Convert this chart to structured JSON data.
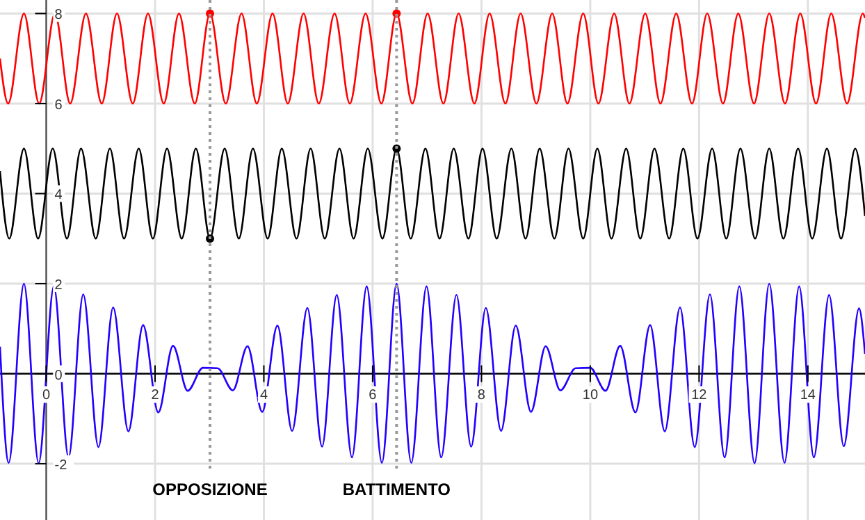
{
  "chart_data": {
    "type": "line",
    "xlim": [
      -0.85,
      15.05
    ],
    "ylim": [
      -3.25,
      8.3
    ],
    "xticks": [
      0,
      2,
      4,
      6,
      8,
      10,
      12,
      14
    ],
    "yticks": [
      -2,
      0,
      2,
      4,
      6,
      8
    ],
    "grid": true,
    "line_style": "solid",
    "ref_lines": [
      {
        "axis": "x",
        "value": 3.01,
        "label": "OPPOSIZIONE",
        "color": "#999999",
        "line_style": "dotted"
      },
      {
        "axis": "x",
        "value": 6.44,
        "label": "BATTIMENTO",
        "color": "#999999",
        "line_style": "dotted"
      }
    ],
    "series": [
      {
        "color": "#ff0000",
        "x": [
          -0.85,
          -0.7,
          -0.41,
          -0.13,
          0.16,
          0.44,
          0.73,
          1.02,
          1.3,
          1.59,
          1.87,
          2.16,
          2.44,
          2.73,
          3.01,
          3.3,
          3.59,
          3.87,
          4.16,
          4.44,
          4.73,
          5.01,
          5.3,
          5.58,
          5.87,
          6.16,
          6.44,
          6.73,
          7.01,
          7.3,
          7.58,
          7.87,
          8.15,
          8.44,
          8.72,
          9.01,
          9.3,
          9.58,
          9.87,
          10.15,
          10.44,
          10.72,
          11.01,
          11.29,
          11.58,
          11.87,
          12.15,
          12.44,
          12.72,
          13.01,
          13.29,
          13.58,
          13.86,
          14.15,
          14.43,
          14.72,
          15.01,
          15.05
        ],
        "values": [
          7.0,
          6,
          8,
          6,
          8,
          6,
          8,
          6,
          8,
          6,
          8,
          6,
          8,
          6,
          8,
          6,
          8,
          6,
          8,
          6,
          8,
          6,
          8,
          6,
          8,
          6,
          8,
          6,
          8,
          6,
          8,
          6,
          8,
          6,
          8,
          6,
          8,
          6,
          8,
          6,
          8,
          6,
          8,
          6,
          8,
          6,
          8,
          6,
          8,
          6,
          8,
          6,
          8,
          6,
          8,
          6,
          8,
          7.9
        ]
      },
      {
        "color": "#000000",
        "x": [
          -0.85,
          -0.68,
          -0.41,
          -0.15,
          0.12,
          0.38,
          0.64,
          0.91,
          1.17,
          1.43,
          1.7,
          1.96,
          2.22,
          2.49,
          2.75,
          3.01,
          3.28,
          3.54,
          3.8,
          4.07,
          4.33,
          4.6,
          4.86,
          5.12,
          5.39,
          5.65,
          5.91,
          6.18,
          6.44,
          6.7,
          6.97,
          7.23,
          7.49,
          7.76,
          8.02,
          8.28,
          8.55,
          8.81,
          9.07,
          9.34,
          9.6,
          9.87,
          10.13,
          10.39,
          10.66,
          10.92,
          11.18,
          11.45,
          11.71,
          11.97,
          12.24,
          12.5,
          12.76,
          13.03,
          13.29,
          13.55,
          13.82,
          14.08,
          14.35,
          14.61,
          14.87,
          15.05
        ],
        "values": [
          4.5,
          3,
          5,
          3,
          5,
          3,
          5,
          3,
          5,
          3,
          5,
          3,
          5,
          3,
          5,
          3,
          5,
          3,
          5,
          3,
          5,
          3,
          5,
          3,
          5,
          3,
          5,
          3,
          5,
          3,
          5,
          3,
          5,
          3,
          5,
          3,
          5,
          3,
          5,
          3,
          5,
          3,
          5,
          3,
          5,
          3,
          5,
          3,
          5,
          3,
          5,
          3,
          5,
          3,
          5,
          3,
          5,
          3,
          5,
          3,
          5,
          3.5
        ]
      },
      {
        "color": "#2200ff",
        "x": [
          -0.85,
          -0.69,
          -0.41,
          -0.14,
          0.14,
          0.41,
          0.68,
          0.96,
          1.23,
          1.51,
          1.78,
          2.06,
          2.33,
          2.6,
          2.88,
          3.15,
          3.43,
          3.7,
          3.97,
          4.25,
          4.52,
          4.8,
          5.07,
          5.34,
          5.62,
          5.89,
          6.17,
          6.44,
          6.71,
          6.99,
          7.26,
          7.54,
          7.81,
          8.08,
          8.36,
          8.63,
          8.91,
          9.18,
          9.45,
          9.73,
          10.0,
          10.28,
          10.55,
          10.83,
          11.1,
          11.37,
          11.65,
          11.92,
          12.2,
          12.47,
          12.74,
          13.02,
          13.29,
          13.57,
          13.84,
          14.11,
          14.39,
          14.66,
          14.94,
          15.05
        ],
        "values": [
          0.6,
          -1.98,
          2.0,
          -1.99,
          1.94,
          -1.86,
          1.76,
          -1.63,
          1.47,
          -1.28,
          1.08,
          -0.86,
          0.62,
          -0.38,
          0.13,
          0.12,
          -0.37,
          0.61,
          -0.85,
          1.07,
          -1.27,
          1.46,
          -1.62,
          1.75,
          -1.86,
          1.94,
          -1.98,
          2.0,
          -1.98,
          1.94,
          -1.86,
          1.75,
          -1.62,
          1.46,
          -1.27,
          1.07,
          -0.85,
          0.61,
          -0.37,
          0.12,
          0.13,
          -0.38,
          0.62,
          -0.86,
          1.08,
          -1.28,
          1.47,
          -1.63,
          1.76,
          -1.86,
          1.94,
          -1.99,
          2.0,
          -1.98,
          1.94,
          -1.86,
          1.75,
          -1.61,
          1.45,
          0.44
        ]
      },
      {
        "type": "scatter",
        "marker": "circle",
        "color": "#ff0000",
        "x": [
          3.01,
          6.44
        ],
        "values": [
          8,
          8
        ]
      },
      {
        "type": "scatter",
        "marker": "circle",
        "color": "#000000",
        "x": [
          3.01,
          6.44
        ],
        "values": [
          3,
          5
        ]
      }
    ]
  }
}
